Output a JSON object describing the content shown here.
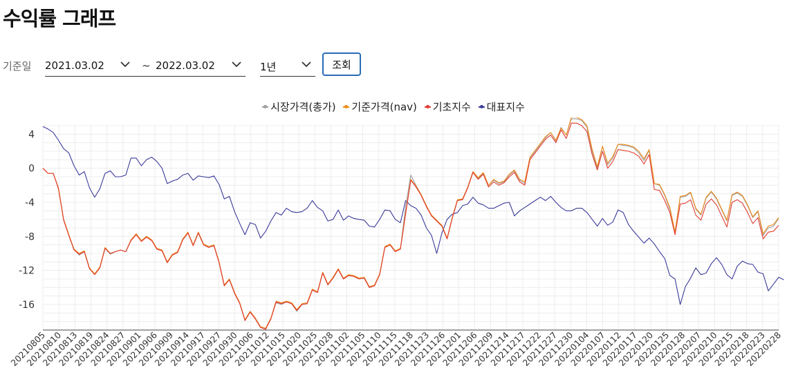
{
  "page": {
    "title": "수익률 그래프"
  },
  "filters": {
    "base_label": "기준일",
    "start_date": "2021.03.02",
    "tilde": "~",
    "end_date": "2022.03.02",
    "period": "1년",
    "search_button": "조회"
  },
  "colors": {
    "market": "#9e9e9e",
    "nav": "#ef8a17",
    "base": "#e03a2f",
    "bench": "#3a3a9a",
    "accent": "#2a6bb5"
  },
  "chart_data": {
    "type": "line",
    "ylim": [
      -19,
      5
    ],
    "yticks": [
      4,
      0,
      -4,
      -8,
      -12,
      -16
    ],
    "xtick_labels": [
      "20210805",
      "20210810",
      "20210813",
      "20210819",
      "20210824",
      "20210827",
      "20210901",
      "20210906",
      "20210909",
      "20210914",
      "20210917",
      "20210927",
      "20210930",
      "20211006",
      "20211012",
      "20211015",
      "20211020",
      "20211025",
      "20211028",
      "20211102",
      "20211105",
      "20211110",
      "20211115",
      "20211118",
      "20211123",
      "20211126",
      "20211201",
      "20211206",
      "20211209",
      "20211214",
      "20211217",
      "20211222",
      "20211227",
      "20211230",
      "20220104",
      "20220107",
      "20220112",
      "20220117",
      "20220120",
      "20220125",
      "20220128",
      "20220207",
      "20220210",
      "20220215",
      "20220218",
      "20220223",
      "20220228"
    ],
    "grid": true,
    "legend_position": "top",
    "series": [
      {
        "name": "시장가격(총가)",
        "key": "market",
        "values": [
          0,
          -0.6,
          -0.6,
          -2.3,
          -6,
          -7.8,
          -9.5,
          -10.2,
          -9.8,
          -11.8,
          -12.4,
          -11.6,
          -9.4,
          -10.1,
          -9.8,
          -9.6,
          -9.8,
          -8.4,
          -7.7,
          -8.5,
          -8.0,
          -8.4,
          -9.5,
          -9.6,
          -11.0,
          -10.2,
          -9.9,
          -8.4,
          -7.6,
          -9.0,
          -7.5,
          -8.9,
          -9.2,
          -9.0,
          -11.0,
          -13.8,
          -13.0,
          -14.6,
          -15.8,
          -17.8,
          -16.8,
          -17.6,
          -18.6,
          -18.8,
          -17.6,
          -15.8,
          -16.0,
          -15.7,
          -15.9,
          -16.8,
          -16.0,
          -15.9,
          -14.3,
          -14.6,
          -12.3,
          -13.7,
          -12.9,
          -11.9,
          -13.0,
          -12.6,
          -12.7,
          -13.0,
          -12.9,
          -14.0,
          -13.8,
          -12.5,
          -9.3,
          -9.0,
          -9.8,
          -9.5,
          -4.5,
          -0.8,
          -2.0,
          -3.1,
          -4.4,
          -5.6,
          -6.2,
          -6.8,
          -8.3,
          -5.9,
          -3.8,
          -3.6,
          -2.2,
          -0.4,
          -1.2,
          -0.6,
          -2.0,
          -1.4,
          -1.8,
          -1.6,
          -0.8,
          -0.3,
          -1.4,
          -1.8,
          1.2,
          2.0,
          2.8,
          3.6,
          4.2,
          3.2,
          4.8,
          3.9,
          5.8,
          5.8,
          5.6,
          4.8,
          2.0,
          0.0,
          2.6,
          0.4,
          1.2,
          2.8,
          2.7,
          2.6,
          2.4,
          1.8,
          0.9,
          2.1,
          -1.8,
          -2.0,
          -3.2,
          -4.8,
          -7.6,
          -3.4,
          -3.3,
          -2.9,
          -4.8,
          -5.5,
          -3.5,
          -2.8,
          -3.6,
          -4.9,
          -6.2,
          -3.2,
          -2.9,
          -3.3,
          -4.4,
          -5.8,
          -5.1,
          -7.9,
          -7.0,
          -6.8,
          -5.9
        ]
      },
      {
        "name": "기준가격(nav)",
        "key": "nav",
        "values": [
          0,
          -0.6,
          -0.6,
          -2.3,
          -6,
          -7.8,
          -9.5,
          -10.0,
          -9.7,
          -11.7,
          -12.4,
          -11.6,
          -9.3,
          -10.0,
          -9.8,
          -9.6,
          -9.8,
          -8.4,
          -7.7,
          -8.5,
          -8.0,
          -8.4,
          -9.4,
          -9.6,
          -11.0,
          -10.1,
          -9.8,
          -8.3,
          -7.5,
          -9.0,
          -7.5,
          -8.9,
          -9.2,
          -9.0,
          -11.0,
          -13.7,
          -13.0,
          -14.6,
          -15.8,
          -17.8,
          -16.8,
          -17.6,
          -18.6,
          -18.8,
          -17.6,
          -15.6,
          -15.8,
          -15.6,
          -15.8,
          -16.6,
          -15.9,
          -15.8,
          -14.2,
          -14.5,
          -12.2,
          -13.6,
          -12.8,
          -11.8,
          -12.9,
          -12.5,
          -12.6,
          -12.9,
          -12.8,
          -13.9,
          -13.7,
          -12.4,
          -9.2,
          -8.9,
          -9.7,
          -9.4,
          -5.3,
          -1.3,
          -2.1,
          -3.1,
          -4.4,
          -5.5,
          -6.1,
          -6.7,
          -8.2,
          -5.8,
          -3.7,
          -3.6,
          -2.2,
          -0.4,
          -1.1,
          -0.5,
          -2.0,
          -1.3,
          -1.7,
          -1.5,
          -0.7,
          -0.2,
          -1.3,
          -1.6,
          1.3,
          2.1,
          2.9,
          3.7,
          4.2,
          3.3,
          4.7,
          3.9,
          6.0,
          6.0,
          5.7,
          5.0,
          2.2,
          0.2,
          2.6,
          0.6,
          1.4,
          2.8,
          2.8,
          2.7,
          2.5,
          2.0,
          1.1,
          2.2,
          -1.8,
          -1.9,
          -3.1,
          -4.6,
          -7.5,
          -3.3,
          -3.2,
          -2.8,
          -4.7,
          -5.4,
          -3.4,
          -2.7,
          -3.5,
          -4.8,
          -6.1,
          -3.1,
          -2.8,
          -3.2,
          -4.3,
          -5.7,
          -5.0,
          -7.7,
          -6.8,
          -6.6,
          -5.8
        ]
      },
      {
        "name": "기초지수",
        "key": "base",
        "values": [
          0,
          -0.6,
          -0.6,
          -2.4,
          -6.1,
          -7.9,
          -9.6,
          -10.1,
          -9.8,
          -11.8,
          -12.5,
          -11.7,
          -9.4,
          -10.0,
          -9.8,
          -9.6,
          -9.8,
          -8.5,
          -7.8,
          -8.6,
          -8.1,
          -8.5,
          -9.5,
          -9.7,
          -11.1,
          -10.2,
          -9.9,
          -8.4,
          -7.6,
          -9.1,
          -7.6,
          -9.0,
          -9.3,
          -9.1,
          -11.1,
          -13.8,
          -13.1,
          -14.7,
          -15.9,
          -17.9,
          -16.9,
          -17.7,
          -18.7,
          -18.9,
          -17.7,
          -15.7,
          -15.9,
          -15.7,
          -15.9,
          -16.7,
          -16.0,
          -15.9,
          -14.3,
          -14.6,
          -12.3,
          -13.7,
          -12.9,
          -11.9,
          -13.0,
          -12.6,
          -12.7,
          -13.0,
          -12.9,
          -14.0,
          -13.8,
          -12.5,
          -9.3,
          -9.0,
          -9.8,
          -9.5,
          -5.4,
          -1.4,
          -2.2,
          -3.2,
          -4.5,
          -5.6,
          -6.2,
          -6.8,
          -8.3,
          -5.9,
          -3.8,
          -3.7,
          -2.3,
          -0.5,
          -1.3,
          -0.7,
          -2.2,
          -1.6,
          -2.0,
          -1.7,
          -1.0,
          -0.5,
          -1.6,
          -2.0,
          1.0,
          1.8,
          2.6,
          3.4,
          3.9,
          3.0,
          4.5,
          3.5,
          5.3,
          5.3,
          5.0,
          4.3,
          1.6,
          -0.2,
          2.0,
          0.0,
          0.8,
          2.2,
          2.1,
          2.0,
          1.8,
          1.4,
          0.5,
          1.6,
          -2.5,
          -2.6,
          -3.8,
          -5.2,
          -7.8,
          -4.2,
          -4.1,
          -3.7,
          -5.5,
          -6.1,
          -4.2,
          -3.6,
          -4.3,
          -5.6,
          -6.9,
          -4.0,
          -3.7,
          -4.1,
          -5.2,
          -6.5,
          -5.8,
          -8.3,
          -7.5,
          -7.4,
          -6.7
        ]
      },
      {
        "name": "대표지수",
        "key": "bench",
        "values": [
          4.9,
          4.6,
          4.2,
          3.3,
          2.3,
          1.8,
          0.3,
          -0.8,
          -0.4,
          -2.3,
          -3.4,
          -2.4,
          -0.6,
          -0.3,
          -1.0,
          -1.0,
          -0.8,
          1.2,
          1.2,
          0.3,
          1.0,
          1.3,
          0.8,
          0.0,
          -1.8,
          -1.5,
          -1.3,
          -0.8,
          -0.6,
          -1.4,
          -0.9,
          -1.0,
          -1.1,
          -0.9,
          -1.9,
          -3.6,
          -3.3,
          -5.1,
          -6.5,
          -7.8,
          -6.4,
          -6.6,
          -8.2,
          -7.4,
          -6.2,
          -5.2,
          -5.5,
          -4.7,
          -5.1,
          -5.2,
          -5.1,
          -4.7,
          -3.8,
          -4.6,
          -5.0,
          -6.2,
          -6.0,
          -4.9,
          -6.1,
          -5.6,
          -5.9,
          -6.0,
          -6.1,
          -6.8,
          -6.9,
          -6.0,
          -4.9,
          -5.0,
          -6.0,
          -6.4,
          -3.8,
          -4.4,
          -4.7,
          -5.5,
          -7.0,
          -7.9,
          -10.0,
          -7.6,
          -6.0,
          -5.4,
          -5.2,
          -4.4,
          -4.2,
          -3.4,
          -4.1,
          -4.3,
          -4.7,
          -4.7,
          -4.4,
          -4.1,
          -4.0,
          -5.6,
          -5.0,
          -4.6,
          -4.2,
          -3.8,
          -3.4,
          -3.8,
          -3.3,
          -4.0,
          -4.6,
          -5.0,
          -5.0,
          -4.7,
          -4.7,
          -5.2,
          -6.0,
          -6.8,
          -5.9,
          -6.7,
          -6.3,
          -4.9,
          -5.2,
          -6.6,
          -7.4,
          -8.1,
          -8.8,
          -8.2,
          -8.9,
          -9.8,
          -10.6,
          -12.6,
          -13.0,
          -16.0,
          -13.9,
          -12.9,
          -11.7,
          -12.5,
          -12.3,
          -11.2,
          -10.5,
          -11.3,
          -12.5,
          -13.0,
          -11.5,
          -10.9,
          -11.2,
          -11.3,
          -12.2,
          -12.4,
          -14.4,
          -13.6,
          -12.8,
          -13.1
        ]
      }
    ]
  }
}
